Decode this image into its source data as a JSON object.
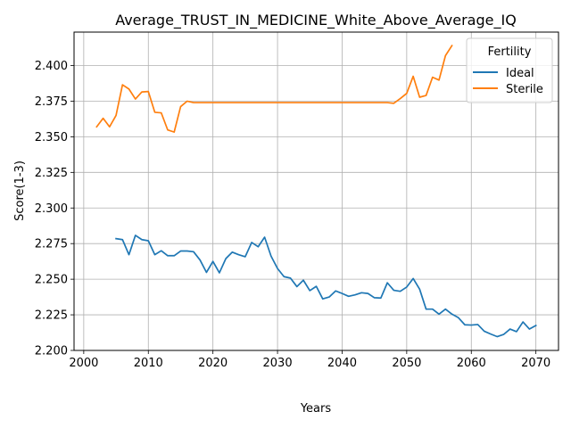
{
  "chart_data": {
    "type": "line",
    "title": "Average_TRUST_IN_MEDICINE_White_Above_Average_IQ",
    "xlabel": "Years",
    "ylabel": "Score(1-3)",
    "xlim": [
      1998.5,
      2073.5
    ],
    "ylim": [
      2.2,
      2.4235
    ],
    "xticks": [
      2000,
      2010,
      2020,
      2030,
      2040,
      2050,
      2060,
      2070
    ],
    "yticks": [
      2.2,
      2.225,
      2.25,
      2.275,
      2.3,
      2.325,
      2.35,
      2.375,
      2.4
    ],
    "ytick_labels": [
      "2.200",
      "2.225",
      "2.250",
      "2.275",
      "2.300",
      "2.325",
      "2.350",
      "2.375",
      "2.400"
    ],
    "grid": true,
    "legend": {
      "title": "Fertility",
      "placement": "top-right"
    },
    "series": [
      {
        "name": "Ideal",
        "color": "#1f77b4",
        "x": [
          2005,
          2006,
          2007,
          2008,
          2009,
          2010,
          2011,
          2012,
          2013,
          2014,
          2015,
          2016,
          2017,
          2018,
          2019,
          2020,
          2021,
          2022,
          2023,
          2024,
          2025,
          2026,
          2027,
          2028,
          2029,
          2030,
          2031,
          2032,
          2033,
          2034,
          2035,
          2036,
          2037,
          2038,
          2039,
          2040,
          2041,
          2042,
          2043,
          2044,
          2045,
          2046,
          2047,
          2048,
          2049,
          2050,
          2051,
          2052,
          2053,
          2054,
          2055,
          2056,
          2057,
          2058,
          2059,
          2060,
          2061,
          2062,
          2063,
          2064,
          2065,
          2066,
          2067,
          2068,
          2069,
          2070
        ],
        "values": [
          2.2785,
          2.2778,
          2.2672,
          2.2808,
          2.2778,
          2.277,
          2.2672,
          2.27,
          2.2665,
          2.2665,
          2.2698,
          2.2698,
          2.2693,
          2.2635,
          2.2548,
          2.2625,
          2.2545,
          2.2645,
          2.269,
          2.2672,
          2.2658,
          2.2758,
          2.2728,
          2.2795,
          2.2662,
          2.2575,
          2.2518,
          2.2508,
          2.2448,
          2.2493,
          2.242,
          2.245,
          2.2362,
          2.2375,
          2.2418,
          2.24,
          2.238,
          2.239,
          2.2405,
          2.24,
          2.237,
          2.2368,
          2.2475,
          2.2422,
          2.2415,
          2.2445,
          2.2505,
          2.243,
          2.229,
          2.229,
          2.2255,
          2.229,
          2.2255,
          2.223,
          2.218,
          2.2178,
          2.2182,
          2.2135,
          2.2115,
          2.2097,
          2.2112,
          2.215,
          2.2132,
          2.22,
          2.215,
          2.2175
        ]
      },
      {
        "name": "Sterile",
        "color": "#ff7f0e",
        "x": [
          2002,
          2003,
          2004,
          2005,
          2006,
          2007,
          2008,
          2009,
          2010,
          2011,
          2012,
          2013,
          2014,
          2015,
          2016,
          2017,
          2018,
          2019,
          2020,
          2021,
          2022,
          2023,
          2024,
          2025,
          2026,
          2027,
          2028,
          2029,
          2030,
          2031,
          2032,
          2033,
          2034,
          2035,
          2036,
          2037,
          2038,
          2039,
          2040,
          2041,
          2042,
          2043,
          2044,
          2045,
          2046,
          2047,
          2048,
          2049,
          2050,
          2051,
          2052,
          2053,
          2054,
          2055,
          2056,
          2057
        ],
        "values": [
          2.357,
          2.363,
          2.357,
          2.365,
          2.3865,
          2.3835,
          2.3765,
          2.3815,
          2.3818,
          2.3672,
          2.3668,
          2.3548,
          2.3533,
          2.3712,
          2.375,
          2.374,
          2.374,
          2.374,
          2.374,
          2.374,
          2.374,
          2.374,
          2.374,
          2.374,
          2.374,
          2.374,
          2.374,
          2.374,
          2.374,
          2.374,
          2.374,
          2.374,
          2.374,
          2.374,
          2.374,
          2.374,
          2.374,
          2.374,
          2.374,
          2.374,
          2.374,
          2.374,
          2.374,
          2.374,
          2.374,
          2.374,
          2.3735,
          2.3768,
          2.3805,
          2.3925,
          2.3778,
          2.379,
          2.3918,
          2.3898,
          2.407,
          2.414
        ]
      }
    ]
  }
}
